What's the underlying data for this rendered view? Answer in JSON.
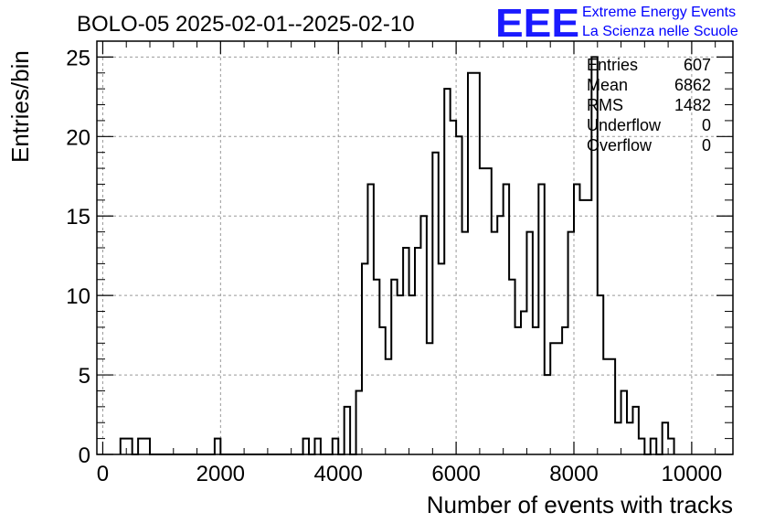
{
  "title": "BOLO-05 2025-02-01--2025-02-10",
  "logo": {
    "mark": "EEE",
    "line1": "Extreme Energy Events",
    "line2": "La Scienza nelle Scuole",
    "color": "#0000ff"
  },
  "stats": {
    "rows": [
      {
        "label": "Entries",
        "value": "607"
      },
      {
        "label": "Mean",
        "value": "6862"
      },
      {
        "label": "RMS",
        "value": "1482"
      },
      {
        "label": "Underflow",
        "value": "0"
      },
      {
        "label": "Overflow",
        "value": "0"
      }
    ]
  },
  "chart_data": {
    "type": "histogram",
    "xlabel": "Number of events with tracks",
    "ylabel": "Entries/bin",
    "xlim": [
      -100,
      10700
    ],
    "ylim": [
      0,
      26
    ],
    "bin_width": 100,
    "x_ticks": [
      0,
      2000,
      4000,
      6000,
      8000,
      10000
    ],
    "y_ticks": [
      0,
      5,
      10,
      15,
      20,
      25
    ],
    "grid": true,
    "bins": [
      {
        "x": 300,
        "y": 1
      },
      {
        "x": 400,
        "y": 1
      },
      {
        "x": 600,
        "y": 1
      },
      {
        "x": 700,
        "y": 1
      },
      {
        "x": 1900,
        "y": 1
      },
      {
        "x": 3400,
        "y": 1
      },
      {
        "x": 3600,
        "y": 1
      },
      {
        "x": 3900,
        "y": 1
      },
      {
        "x": 4100,
        "y": 3
      },
      {
        "x": 4300,
        "y": 4
      },
      {
        "x": 4400,
        "y": 12
      },
      {
        "x": 4500,
        "y": 17
      },
      {
        "x": 4600,
        "y": 11
      },
      {
        "x": 4700,
        "y": 8
      },
      {
        "x": 4800,
        "y": 6
      },
      {
        "x": 4900,
        "y": 11
      },
      {
        "x": 5000,
        "y": 10
      },
      {
        "x": 5100,
        "y": 13
      },
      {
        "x": 5200,
        "y": 10
      },
      {
        "x": 5300,
        "y": 13
      },
      {
        "x": 5400,
        "y": 15
      },
      {
        "x": 5500,
        "y": 7
      },
      {
        "x": 5600,
        "y": 19
      },
      {
        "x": 5700,
        "y": 12
      },
      {
        "x": 5800,
        "y": 23
      },
      {
        "x": 5900,
        "y": 21
      },
      {
        "x": 6000,
        "y": 20
      },
      {
        "x": 6100,
        "y": 14
      },
      {
        "x": 6200,
        "y": 24
      },
      {
        "x": 6300,
        "y": 24
      },
      {
        "x": 6400,
        "y": 18
      },
      {
        "x": 6500,
        "y": 18
      },
      {
        "x": 6600,
        "y": 14
      },
      {
        "x": 6700,
        "y": 15
      },
      {
        "x": 6800,
        "y": 17
      },
      {
        "x": 6900,
        "y": 11
      },
      {
        "x": 7000,
        "y": 8
      },
      {
        "x": 7100,
        "y": 9
      },
      {
        "x": 7200,
        "y": 14
      },
      {
        "x": 7300,
        "y": 8
      },
      {
        "x": 7400,
        "y": 17
      },
      {
        "x": 7500,
        "y": 5
      },
      {
        "x": 7600,
        "y": 7
      },
      {
        "x": 7700,
        "y": 7
      },
      {
        "x": 7800,
        "y": 8
      },
      {
        "x": 7900,
        "y": 14
      },
      {
        "x": 8000,
        "y": 17
      },
      {
        "x": 8100,
        "y": 16
      },
      {
        "x": 8200,
        "y": 16
      },
      {
        "x": 8300,
        "y": 25
      },
      {
        "x": 8400,
        "y": 10
      },
      {
        "x": 8500,
        "y": 6
      },
      {
        "x": 8600,
        "y": 6
      },
      {
        "x": 8700,
        "y": 2
      },
      {
        "x": 8800,
        "y": 4
      },
      {
        "x": 8900,
        "y": 2
      },
      {
        "x": 9000,
        "y": 3
      },
      {
        "x": 9100,
        "y": 1
      },
      {
        "x": 9300,
        "y": 1
      },
      {
        "x": 9500,
        "y": 2
      },
      {
        "x": 9600,
        "y": 1
      }
    ]
  }
}
